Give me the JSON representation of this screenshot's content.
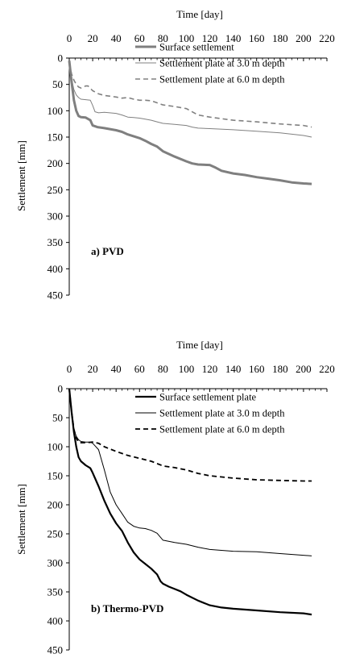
{
  "chart_data": [
    {
      "type": "line",
      "xlabel": "Time [day]",
      "ylabel": "Settlement [mm]",
      "xlim": [
        0,
        220
      ],
      "ylim": [
        0,
        450
      ],
      "y_inverted": true,
      "x_axis_position": "top",
      "x_ticks": [
        "0",
        "20",
        "40",
        "60",
        "80",
        "100",
        "120",
        "140",
        "160",
        "180",
        "200",
        "220"
      ],
      "y_ticks": [
        "0",
        "50",
        "100",
        "150",
        "200",
        "250",
        "300",
        "350",
        "400",
        "450"
      ],
      "panel_label": "a) PVD",
      "legend_position": "top-right",
      "series": [
        {
          "name": "Surface settlement",
          "style": "thick-gray",
          "color": "#7f7f7f",
          "x": [
            0,
            2,
            4,
            6,
            8,
            10,
            14,
            18,
            20,
            24,
            30,
            40,
            45,
            50,
            60,
            65,
            70,
            75,
            80,
            90,
            100,
            105,
            110,
            120,
            125,
            130,
            140,
            150,
            160,
            170,
            180,
            190,
            200,
            207
          ],
          "y": [
            5,
            45,
            80,
            100,
            110,
            112,
            113,
            118,
            128,
            131,
            133,
            137,
            140,
            145,
            152,
            157,
            163,
            168,
            177,
            187,
            196,
            200,
            202,
            203,
            208,
            214,
            219,
            222,
            226,
            229,
            232,
            236,
            238,
            239
          ]
        },
        {
          "name": "Settlement plate at 3.0 m depth",
          "style": "thin-gray",
          "color": "#808080",
          "x": [
            0,
            2,
            4,
            6,
            8,
            10,
            14,
            18,
            20,
            22,
            25,
            30,
            40,
            45,
            50,
            55,
            60,
            65,
            70,
            75,
            80,
            90,
            100,
            105,
            110,
            120,
            140,
            160,
            180,
            200,
            207
          ],
          "y": [
            10,
            40,
            60,
            70,
            75,
            78,
            79,
            80,
            90,
            102,
            104,
            103,
            105,
            108,
            112,
            113,
            114,
            116,
            118,
            121,
            124,
            126,
            128,
            131,
            133,
            134,
            136,
            139,
            142,
            147,
            150
          ]
        },
        {
          "name": "Settlement plate at 6.0 m depth",
          "style": "dashed-gray",
          "color": "#808080",
          "x": [
            0,
            2,
            4,
            6,
            8,
            10,
            14,
            16,
            20,
            25,
            30,
            40,
            45,
            50,
            55,
            60,
            65,
            70,
            75,
            80,
            90,
            100,
            110,
            120,
            140,
            160,
            180,
            200,
            207
          ],
          "y": [
            10,
            30,
            42,
            50,
            55,
            57,
            53,
            53,
            62,
            68,
            71,
            74,
            76,
            75,
            78,
            80,
            80,
            81,
            85,
            89,
            92,
            96,
            108,
            112,
            118,
            121,
            125,
            128,
            131
          ]
        }
      ]
    },
    {
      "type": "line",
      "xlabel": "Time [day]",
      "ylabel": "Settlement [mm]",
      "xlim": [
        0,
        220
      ],
      "ylim": [
        0,
        450
      ],
      "y_inverted": true,
      "x_axis_position": "top",
      "x_ticks": [
        "0",
        "20",
        "40",
        "60",
        "80",
        "100",
        "120",
        "140",
        "160",
        "180",
        "200",
        "220"
      ],
      "y_ticks": [
        "0",
        "50",
        "100",
        "150",
        "200",
        "250",
        "300",
        "350",
        "400",
        "450"
      ],
      "panel_label": "b) Thermo-PVD",
      "legend_position": "top-right",
      "series": [
        {
          "name": "Surface settlement plate",
          "style": "thick-black",
          "color": "#000000",
          "x": [
            0,
            2,
            4,
            6,
            8,
            10,
            14,
            18,
            20,
            25,
            30,
            35,
            40,
            45,
            50,
            55,
            60,
            65,
            70,
            75,
            78,
            80,
            85,
            90,
            95,
            100,
            110,
            120,
            130,
            140,
            160,
            180,
            200,
            207
          ],
          "y": [
            0,
            40,
            75,
            100,
            118,
            125,
            132,
            137,
            145,
            168,
            193,
            215,
            232,
            245,
            265,
            282,
            294,
            302,
            310,
            320,
            332,
            336,
            341,
            345,
            349,
            355,
            365,
            373,
            377,
            379,
            382,
            385,
            387,
            389
          ]
        },
        {
          "name": "Settlement plate at 3.0 m depth",
          "style": "thin-black",
          "color": "#000000",
          "x": [
            0,
            2,
            4,
            6,
            8,
            10,
            14,
            18,
            20,
            25,
            30,
            35,
            40,
            45,
            50,
            55,
            60,
            65,
            70,
            75,
            80,
            90,
            100,
            110,
            120,
            140,
            160,
            180,
            200,
            207
          ],
          "y": [
            0,
            40,
            70,
            82,
            88,
            91,
            92,
            92,
            94,
            105,
            140,
            178,
            200,
            215,
            230,
            237,
            240,
            241,
            244,
            249,
            261,
            265,
            268,
            273,
            277,
            280,
            281,
            284,
            287,
            288
          ]
        },
        {
          "name": "Settlement plate at 6.0 m depth",
          "style": "dashed-black",
          "color": "#000000",
          "x": [
            0,
            2,
            4,
            6,
            8,
            10,
            15,
            20,
            25,
            30,
            40,
            50,
            60,
            70,
            80,
            90,
            100,
            110,
            120,
            140,
            160,
            180,
            200,
            207
          ],
          "y": [
            0,
            40,
            70,
            85,
            92,
            93,
            93,
            92,
            94,
            100,
            108,
            115,
            120,
            125,
            133,
            136,
            140,
            146,
            150,
            154,
            157,
            158,
            159,
            159
          ]
        }
      ]
    }
  ]
}
